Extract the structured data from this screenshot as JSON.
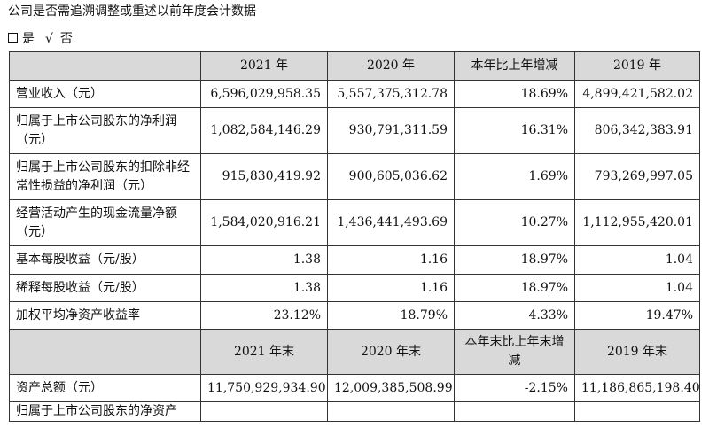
{
  "heading": "公司是否需追溯调整或重述以前年度会计数据",
  "options": {
    "no_box": "是",
    "check": "√",
    "no_label": "否"
  },
  "table1": {
    "headers": [
      "",
      "2021 年",
      "2020 年",
      "本年比上年增减",
      "2019 年"
    ],
    "rows": [
      [
        "营业收入（元）",
        "6,596,029,958.35",
        "5,557,375,312.78",
        "18.69%",
        "4,899,421,582.02"
      ],
      [
        "归属于上市公司股东的净利润（元）",
        "1,082,584,146.29",
        "930,791,311.59",
        "16.31%",
        "806,342,383.91"
      ],
      [
        "归属于上市公司股东的扣除非经常性损益的净利润（元）",
        "915,830,419.92",
        "900,605,036.62",
        "1.69%",
        "793,269,997.05"
      ],
      [
        "经营活动产生的现金流量净额（元）",
        "1,584,020,916.21",
        "1,436,441,493.69",
        "10.27%",
        "1,112,955,420.01"
      ],
      [
        "基本每股收益（元/股）",
        "1.38",
        "1.16",
        "18.97%",
        "1.04"
      ],
      [
        "稀释每股收益（元/股）",
        "1.38",
        "1.16",
        "18.97%",
        "1.04"
      ],
      [
        "加权平均净资产收益率",
        "23.12%",
        "18.79%",
        "4.33%",
        "19.47%"
      ]
    ]
  },
  "table2": {
    "headers": [
      "",
      "2021 年末",
      "2020 年末",
      "本年末比上年末增减",
      "2019 年末"
    ],
    "rows": [
      [
        "资产总额（元）",
        "11,750,929,934.90",
        "12,009,385,508.99",
        "-2.15%",
        "11,186,865,198.40"
      ],
      [
        "归属于上市公司股东的净资产",
        "",
        "",
        "",
        ""
      ]
    ]
  }
}
